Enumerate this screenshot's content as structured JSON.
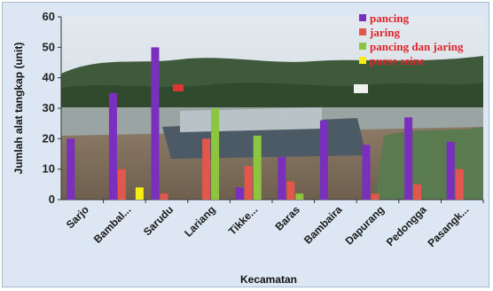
{
  "chart_data": {
    "type": "bar",
    "title": "",
    "xlabel": "Kecamatan",
    "ylabel": "Jumlah alat tangkap (unit)",
    "ylim": [
      0,
      60
    ],
    "yticks": [
      0,
      10,
      20,
      30,
      40,
      50,
      60
    ],
    "grid": false,
    "legend_position": "top-right",
    "categories": [
      "Sarjo",
      "Bambal...",
      "Sarudu",
      "Lariang",
      "Tikke...",
      "Baras",
      "Bambaira",
      "Dapurang",
      "Pedongga",
      "Pasangk..."
    ],
    "series": [
      {
        "name": "pancing",
        "color": "#7b2fbe",
        "values": [
          20,
          35,
          50,
          0,
          4,
          14,
          26,
          18,
          27,
          19
        ]
      },
      {
        "name": "jaring",
        "color": "#e2574c",
        "values": [
          0,
          10,
          2,
          20,
          11,
          6,
          0,
          2,
          5,
          10
        ]
      },
      {
        "name": "pancing dan jaring",
        "color": "#8cc63f",
        "values": [
          0,
          0,
          0,
          30,
          21,
          2,
          0,
          0,
          0,
          0
        ]
      },
      {
        "name": "purse seine",
        "color": "#f5ee10",
        "values": [
          0,
          4,
          0,
          0,
          0,
          0,
          0,
          0,
          0,
          0
        ]
      }
    ]
  }
}
